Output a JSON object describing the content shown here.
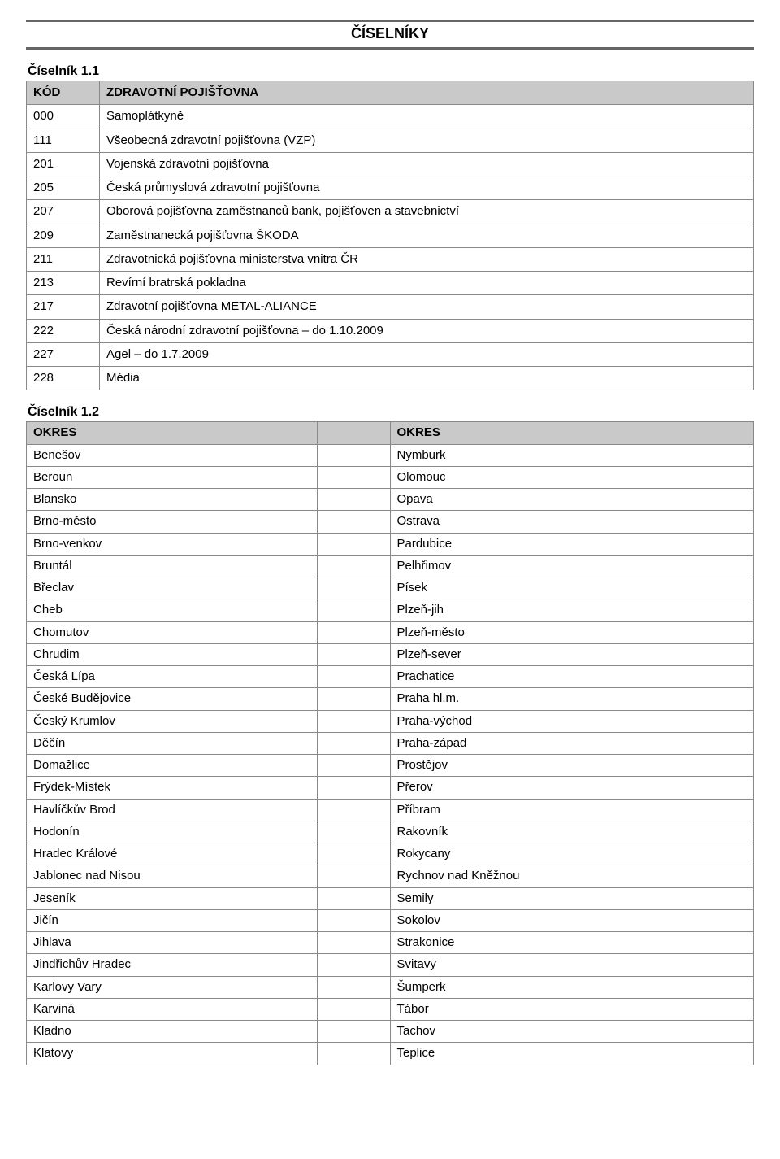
{
  "page_title": "ČÍSELNÍKY",
  "table1": {
    "label": "Číselník 1.1",
    "header_code": "KÓD",
    "header_desc": "ZDRAVOTNÍ POJIŠŤOVNA",
    "rows": [
      {
        "code": "000",
        "desc": "Samoplátkyně"
      },
      {
        "code": "111",
        "desc": "Všeobecná zdravotní pojišťovna (VZP)"
      },
      {
        "code": "201",
        "desc": "Vojenská zdravotní pojišťovna"
      },
      {
        "code": "205",
        "desc": "Česká průmyslová zdravotní pojišťovna"
      },
      {
        "code": "207",
        "desc": "Oborová pojišťovna zaměstnanců bank, pojišťoven a stavebnictví"
      },
      {
        "code": "209",
        "desc": "Zaměstnanecká pojišťovna ŠKODA"
      },
      {
        "code": "211",
        "desc": "Zdravotnická pojišťovna ministerstva vnitra ČR"
      },
      {
        "code": "213",
        "desc": "Revírní bratrská pokladna"
      },
      {
        "code": "217",
        "desc": "Zdravotní pojišťovna METAL-ALIANCE"
      },
      {
        "code": "222",
        "desc": "Česká národní zdravotní pojišťovna – do 1.10.2009"
      },
      {
        "code": "227",
        "desc": "Agel – do 1.7.2009"
      },
      {
        "code": "228",
        "desc": "Média"
      }
    ]
  },
  "table2": {
    "label": "Číselník 1.2",
    "header_left": "OKRES",
    "header_right": "OKRES",
    "rows": [
      {
        "l": "Benešov",
        "r": "Nymburk"
      },
      {
        "l": "Beroun",
        "r": "Olomouc"
      },
      {
        "l": "Blansko",
        "r": "Opava"
      },
      {
        "l": "Brno-město",
        "r": "Ostrava"
      },
      {
        "l": "Brno-venkov",
        "r": "Pardubice"
      },
      {
        "l": "Bruntál",
        "r": "Pelhřimov"
      },
      {
        "l": "Břeclav",
        "r": "Písek"
      },
      {
        "l": "Cheb",
        "r": "Plzeň-jih"
      },
      {
        "l": "Chomutov",
        "r": "Plzeň-město"
      },
      {
        "l": "Chrudim",
        "r": "Plzeň-sever"
      },
      {
        "l": "Česká Lípa",
        "r": "Prachatice"
      },
      {
        "l": "České Budějovice",
        "r": "Praha hl.m."
      },
      {
        "l": "Český Krumlov",
        "r": "Praha-východ"
      },
      {
        "l": "Děčín",
        "r": "Praha-západ"
      },
      {
        "l": "Domažlice",
        "r": "Prostějov"
      },
      {
        "l": "Frýdek-Místek",
        "r": "Přerov"
      },
      {
        "l": "Havlíčkův Brod",
        "r": "Příbram"
      },
      {
        "l": "Hodonín",
        "r": "Rakovník"
      },
      {
        "l": "Hradec Králové",
        "r": "Rokycany"
      },
      {
        "l": "Jablonec nad Nisou",
        "r": "Rychnov nad Kněžnou"
      },
      {
        "l": "Jeseník",
        "r": "Semily"
      },
      {
        "l": "Jičín",
        "r": "Sokolov"
      },
      {
        "l": "Jihlava",
        "r": "Strakonice"
      },
      {
        "l": "Jindřichův Hradec",
        "r": "Svitavy"
      },
      {
        "l": "Karlovy Vary",
        "r": "Šumperk"
      },
      {
        "l": "Karviná",
        "r": "Tábor"
      },
      {
        "l": "Kladno",
        "r": "Tachov"
      },
      {
        "l": "Klatovy",
        "r": "Teplice"
      }
    ]
  }
}
